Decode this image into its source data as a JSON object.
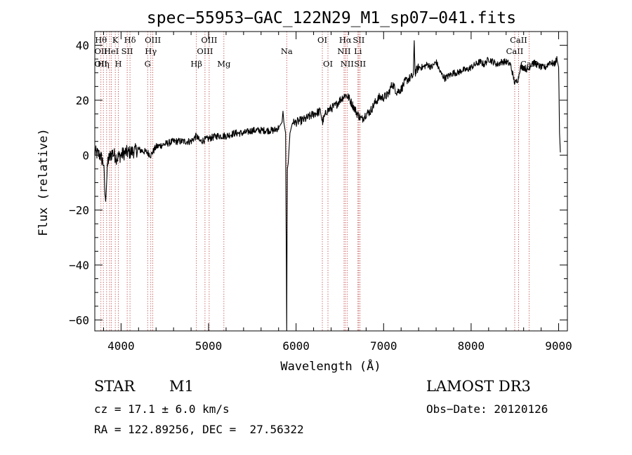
{
  "chart_data": {
    "type": "line",
    "title": "spec−55953−GAC_122N29_M1_sp07−041.fits",
    "xlabel": "Wavelength (Å)",
    "ylabel": "Flux (relative)",
    "xlim": [
      3700,
      9100
    ],
    "ylim": [
      -64,
      45
    ],
    "xticks": [
      4000,
      5000,
      6000,
      7000,
      8000,
      9000
    ],
    "yticks": [
      -60,
      -40,
      -20,
      0,
      20,
      40
    ],
    "series": [
      {
        "name": "spectrum",
        "x": [
          3700,
          3760,
          3800,
          3820,
          3850,
          3900,
          3950,
          4000,
          4050,
          4100,
          4200,
          4300,
          4340,
          4400,
          4500,
          4600,
          4700,
          4800,
          4861,
          4900,
          5000,
          5100,
          5200,
          5300,
          5400,
          5500,
          5600,
          5700,
          5750,
          5800,
          5840,
          5850,
          5860,
          5880,
          5893,
          5900,
          5910,
          5930,
          5960,
          6000,
          6100,
          6200,
          6280,
          6300,
          6350,
          6400,
          6450,
          6500,
          6563,
          6600,
          6650,
          6700,
          6750,
          6800,
          6850,
          6900,
          6950,
          7000,
          7050,
          7100,
          7150,
          7200,
          7250,
          7300,
          7340,
          7350,
          7360,
          7380,
          7400,
          7450,
          7500,
          7550,
          7600,
          7650,
          7700,
          7750,
          7800,
          7850,
          7900,
          7950,
          8000,
          8050,
          8100,
          8150,
          8200,
          8250,
          8300,
          8350,
          8400,
          8450,
          8500,
          8540,
          8560,
          8600,
          8650,
          8700,
          8750,
          8800,
          8850,
          8900,
          8950,
          8980,
          9000,
          9010,
          9020
        ],
        "y": [
          1,
          0,
          -3,
          -17,
          -2,
          1,
          -1,
          0,
          1,
          1,
          2,
          1,
          0,
          3,
          4,
          5,
          5,
          5,
          7,
          5,
          6,
          7,
          7,
          8,
          8,
          9,
          9,
          9,
          9,
          10,
          12,
          16,
          12,
          8,
          -64,
          -5,
          -3,
          8,
          12,
          12,
          13,
          15,
          16,
          12,
          16,
          17,
          18,
          20,
          22,
          21,
          18,
          15,
          13,
          15,
          16,
          19,
          21,
          21,
          22,
          26,
          23,
          24,
          27,
          28,
          29,
          42,
          30,
          31,
          32,
          32,
          33,
          32,
          34,
          30,
          28,
          29,
          30,
          30,
          31,
          31,
          32,
          33,
          34,
          33,
          35,
          34,
          33,
          34,
          34,
          33,
          26,
          28,
          32,
          32,
          31,
          34,
          33,
          32,
          32,
          34,
          33,
          35,
          32,
          8,
          1
        ]
      }
    ],
    "line_markers": [
      {
        "wavelength": 3770,
        "labels": [
          "Hθ",
          "OII",
          "OII"
        ]
      },
      {
        "wavelength": 3798,
        "labels": [
          "",
          "",
          "Hη"
        ]
      },
      {
        "wavelength": 3835,
        "labels": [
          "",
          "",
          ""
        ]
      },
      {
        "wavelength": 3869,
        "labels": [
          "",
          "",
          ""
        ]
      },
      {
        "wavelength": 3889,
        "labels": [
          "",
          "HeI",
          ""
        ]
      },
      {
        "wavelength": 3934,
        "labels": [
          "K",
          "",
          ""
        ]
      },
      {
        "wavelength": 3969,
        "labels": [
          "",
          "",
          "H"
        ]
      },
      {
        "wavelength": 4070,
        "labels": [
          "",
          "SII",
          ""
        ]
      },
      {
        "wavelength": 4102,
        "labels": [
          "Hδ",
          "",
          ""
        ]
      },
      {
        "wavelength": 4304,
        "labels": [
          "",
          "",
          "G"
        ]
      },
      {
        "wavelength": 4340,
        "labels": [
          "",
          "Hγ",
          ""
        ]
      },
      {
        "wavelength": 4363,
        "labels": [
          "OIII",
          "",
          ""
        ]
      },
      {
        "wavelength": 4861,
        "labels": [
          "",
          "",
          "Hβ"
        ]
      },
      {
        "wavelength": 4959,
        "labels": [
          "",
          "OIII",
          ""
        ]
      },
      {
        "wavelength": 5007,
        "labels": [
          "OIII",
          "",
          ""
        ]
      },
      {
        "wavelength": 5175,
        "labels": [
          "",
          "",
          "Mg"
        ]
      },
      {
        "wavelength": 5893,
        "labels": [
          "",
          "Na",
          ""
        ]
      },
      {
        "wavelength": 6300,
        "labels": [
          "OI",
          "",
          ""
        ]
      },
      {
        "wavelength": 6364,
        "labels": [
          "",
          "",
          "OI"
        ]
      },
      {
        "wavelength": 6548,
        "labels": [
          "",
          "NII",
          ""
        ]
      },
      {
        "wavelength": 6563,
        "labels": [
          "Hα",
          "",
          ""
        ]
      },
      {
        "wavelength": 6583,
        "labels": [
          "",
          "",
          "NII"
        ]
      },
      {
        "wavelength": 6707,
        "labels": [
          "",
          "Li",
          ""
        ]
      },
      {
        "wavelength": 6716,
        "labels": [
          "SII",
          "",
          ""
        ]
      },
      {
        "wavelength": 6731,
        "labels": [
          "",
          "",
          "SII"
        ]
      },
      {
        "wavelength": 8498,
        "labels": [
          "",
          "CaII",
          ""
        ]
      },
      {
        "wavelength": 8542,
        "labels": [
          "CaII",
          "",
          ""
        ]
      },
      {
        "wavelength": 8662,
        "labels": [
          "",
          "",
          "CaII"
        ]
      }
    ],
    "grid": false,
    "legend": "none"
  },
  "info": {
    "object_class": "STAR",
    "subclass": "M1",
    "survey": "LAMOST DR3",
    "cz": "cz = 17.1 ± 6.0 km/s",
    "obs_date": "Obs−Date: 20120126",
    "radec": "RA = 122.89256, DEC =  27.56322"
  }
}
